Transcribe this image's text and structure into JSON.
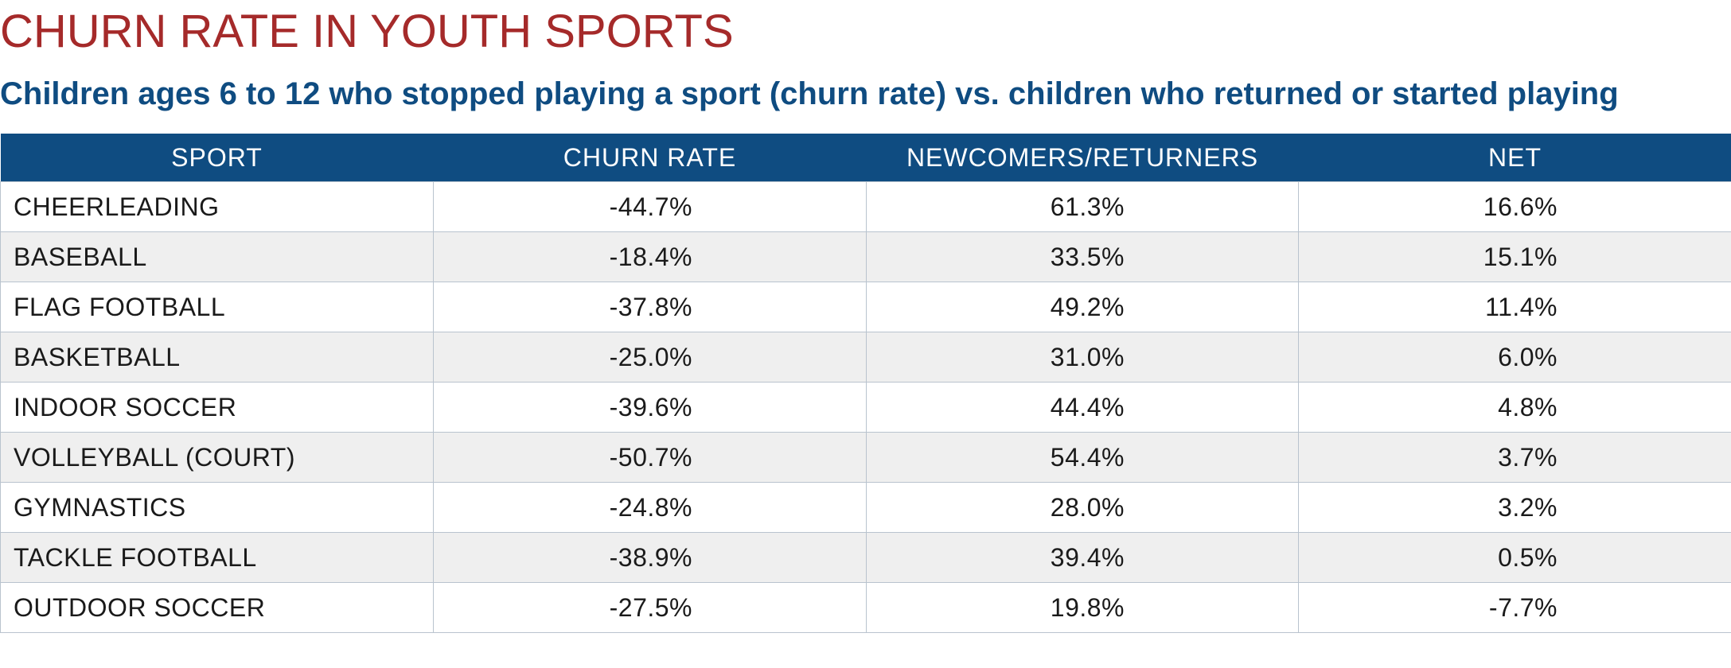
{
  "chart_data": {
    "type": "table",
    "title": "CHURN RATE IN YOUTH SPORTS",
    "subtitle": "Children ages 6 to 12 who stopped playing a sport (churn rate) vs. children who returned or started playing",
    "columns": [
      "SPORT",
      "CHURN RATE",
      "NEWCOMERS/RETURNERS",
      "NET"
    ],
    "rows": [
      {
        "sport": "CHEERLEADING",
        "churn": "-44.7%",
        "newcomers": "61.3%",
        "net": "16.6%"
      },
      {
        "sport": "BASEBALL",
        "churn": "-18.4%",
        "newcomers": "33.5%",
        "net": "15.1%"
      },
      {
        "sport": "FLAG FOOTBALL",
        "churn": "-37.8%",
        "newcomers": "49.2%",
        "net": "11.4%"
      },
      {
        "sport": "BASKETBALL",
        "churn": "-25.0%",
        "newcomers": "31.0%",
        "net": "6.0%"
      },
      {
        "sport": "INDOOR SOCCER",
        "churn": "-39.6%",
        "newcomers": "44.4%",
        "net": "4.8%"
      },
      {
        "sport": "VOLLEYBALL (COURT)",
        "churn": "-50.7%",
        "newcomers": "54.4%",
        "net": "3.7%"
      },
      {
        "sport": "GYMNASTICS",
        "churn": "-24.8%",
        "newcomers": "28.0%",
        "net": "3.2%"
      },
      {
        "sport": "TACKLE FOOTBALL",
        "churn": "-38.9%",
        "newcomers": "39.4%",
        "net": "0.5%"
      },
      {
        "sport": "OUTDOOR SOCCER",
        "churn": "-27.5%",
        "newcomers": "19.8%",
        "net": "-7.7%"
      }
    ],
    "colors": {
      "title": "#a52a2a",
      "subtitle": "#0f4c81",
      "header_bg": "#0f4c81",
      "header_text": "#ffffff",
      "stripe": "#efefef",
      "border": "#b9c3ce"
    }
  }
}
